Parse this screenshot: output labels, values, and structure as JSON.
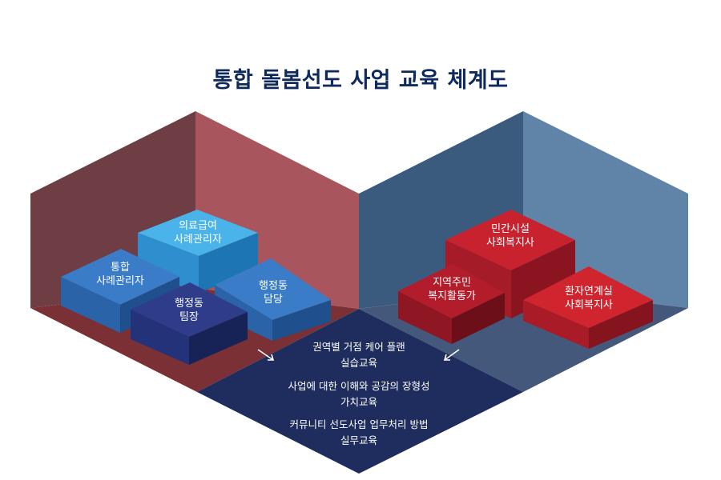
{
  "title": "통합 돌봄선도 사업 교육 체계도",
  "left_boxes": [
    {
      "line1": "의료급여",
      "line2": "사례관리자"
    },
    {
      "line1": "통합",
      "line2": "사례관리자"
    },
    {
      "line1": "행정동",
      "line2": "담당"
    },
    {
      "line1": "행정동",
      "line2": "팀장"
    }
  ],
  "right_boxes": [
    {
      "line1": "민간시설",
      "line2": "사회복지사"
    },
    {
      "line1": "지역주민",
      "line2": "복지활동가"
    },
    {
      "line1": "환자연계실",
      "line2": "사회복지사"
    }
  ],
  "center_items": [
    {
      "line1": "권역별 거점 케어 플랜",
      "line2": "실습교육"
    },
    {
      "line1": "사업에 대한 이해와 공감의 장형성",
      "line2": "가치교육"
    },
    {
      "line1": "커뮤니티 선도사업 업무처리 방법",
      "line2": "실무교육"
    }
  ],
  "colors": {
    "title": "#0f2a5c",
    "left_wall_dark": "#6f3d44",
    "left_wall_light": "#a9555d",
    "left_floor": "#7a3035",
    "right_wall_dark": "#3b5b7e",
    "right_wall_light": "#5f84a8",
    "right_floor": "#44587c",
    "center_floor": "#1f2d5e",
    "blue_box": "#2b6cb5",
    "cyan_box": "#3aa0de",
    "navy_box": "#24327a",
    "red_box": "#c0202e",
    "darkred_box": "#9c1a26"
  }
}
